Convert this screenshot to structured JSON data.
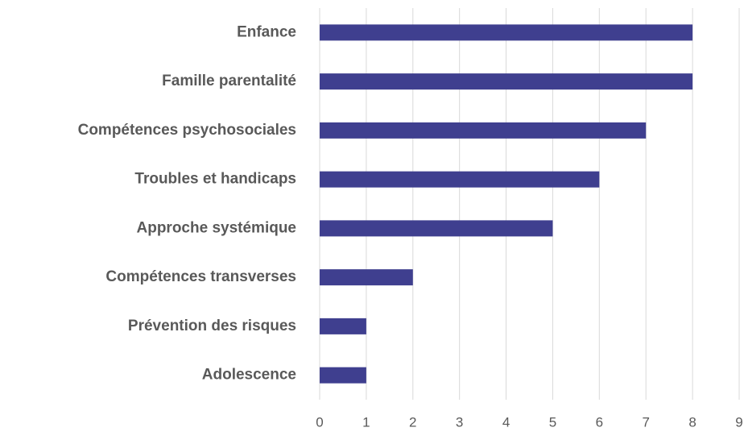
{
  "chart_data": {
    "type": "bar",
    "orientation": "horizontal",
    "categories": [
      "Enfance",
      "Famille parentalité",
      "Compétences psychosociales",
      "Troubles et handicaps",
      "Approche systémique",
      "Compétences transverses",
      "Prévention des risques",
      "Adolescence"
    ],
    "values": [
      8,
      8,
      7,
      6,
      5,
      2,
      1,
      1
    ],
    "color": "#3f3f8f",
    "xlim": [
      0,
      9
    ],
    "xticks": [
      0,
      1,
      2,
      3,
      4,
      5,
      6,
      7,
      8,
      9
    ],
    "grid": true
  }
}
